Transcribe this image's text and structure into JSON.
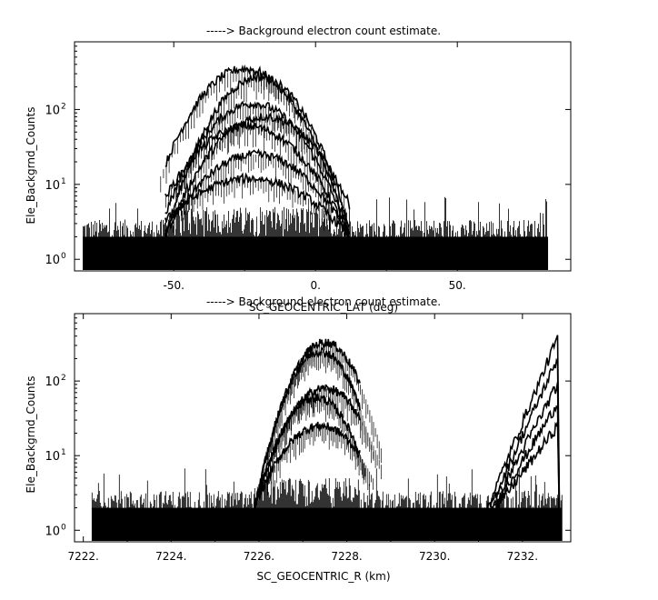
{
  "chart_data": [
    {
      "type": "line",
      "title": "-----> Background electron count estimate.",
      "xlabel": "SC_GEOCENTRIC_LAT (deg)",
      "ylabel": "Ele_Backgrnd_Counts",
      "x_ticks": [
        -50,
        0,
        50
      ],
      "x_tick_labels": [
        "-50.",
        "0.",
        "50."
      ],
      "y_ticks": [
        1,
        10,
        100
      ],
      "y_tick_bases": [
        "10",
        "10",
        "10"
      ],
      "y_tick_exponents": [
        "0",
        "1",
        "2"
      ],
      "xlim": [
        -85,
        90
      ],
      "ylim": [
        0.7,
        800
      ],
      "y_scale": "log",
      "x_data_extent": [
        -82,
        82
      ],
      "noise_floor": 2,
      "bump_extent": [
        -53,
        12
      ],
      "series": [
        {
          "peak_x": -25,
          "peak_y": 350
        },
        {
          "peak_x": -20,
          "peak_y": 270
        },
        {
          "peak_x": -22,
          "peak_y": 120
        },
        {
          "peak_x": -18,
          "peak_y": 80
        },
        {
          "peak_x": -24,
          "peak_y": 60
        },
        {
          "peak_x": -21,
          "peak_y": 25
        },
        {
          "peak_x": -23,
          "peak_y": 12
        }
      ],
      "grid": false,
      "legend": "none"
    },
    {
      "type": "line",
      "title": "-----> Background electron count estimate.",
      "xlabel": "SC_GEOCENTRIC_R (km)",
      "ylabel": "Ele_Backgrnd_Counts",
      "x_ticks": [
        7222,
        7224,
        7226,
        7228,
        7230,
        7232
      ],
      "x_tick_labels": [
        "7222.",
        "7224.",
        "7226.",
        "7228.",
        "7230.",
        "7232."
      ],
      "y_ticks": [
        1,
        10,
        100
      ],
      "y_tick_bases": [
        "10",
        "10",
        "10"
      ],
      "y_tick_exponents": [
        "0",
        "1",
        "2"
      ],
      "xlim": [
        7221.8,
        7233.1
      ],
      "ylim": [
        0.7,
        800
      ],
      "y_scale": "log",
      "x_data_extent": [
        7222.2,
        7232.9
      ],
      "noise_floor": 2,
      "bump_extent": [
        7225.9,
        7228.3
      ],
      "series": [
        {
          "peak_x": 7227.5,
          "peak_y": 330
        },
        {
          "peak_x": 7227.4,
          "peak_y": 250
        },
        {
          "peak_x": 7227.5,
          "peak_y": 80
        },
        {
          "peak_x": 7227.3,
          "peak_y": 60
        },
        {
          "peak_x": 7227.4,
          "peak_y": 25
        }
      ],
      "rise_extent": [
        7231.2,
        7232.8
      ],
      "rise_peaks": [
        380,
        200,
        90,
        50,
        25
      ],
      "grid": false,
      "legend": "none"
    }
  ]
}
